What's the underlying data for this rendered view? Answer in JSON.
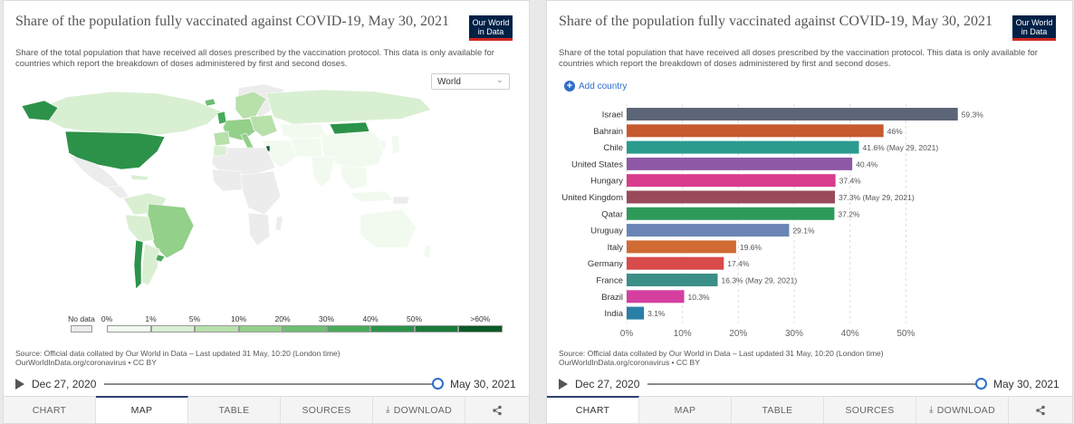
{
  "common": {
    "title": "Share of the population fully vaccinated against COVID-19, May 30, 2021",
    "subtitle": "Share of the total population that have received all doses prescribed by the vaccination protocol. This data is only available for countries which report the breakdown of doses administered by first and second doses.",
    "logo_line1": "Our World",
    "logo_line2": "in Data",
    "source_line1": "Source: Official data collated by Our World in Data – Last updated 31 May, 10:20 (London time)",
    "source_line2": "OurWorldInData.org/coronavirus • CC BY",
    "timeline_start": "Dec 27, 2020",
    "timeline_end": "May 30, 2021",
    "timeline_position": 1.0
  },
  "left": {
    "region_select": "World",
    "tabs": [
      {
        "label": "CHART",
        "active": false
      },
      {
        "label": "MAP",
        "active": true
      },
      {
        "label": "TABLE",
        "active": false
      },
      {
        "label": "SOURCES",
        "active": false
      },
      {
        "label": "DOWNLOAD",
        "active": false
      }
    ],
    "legend": {
      "no_data": "No data",
      "labels": [
        "0%",
        "1%",
        "5%",
        "10%",
        "20%",
        "30%",
        "40%",
        "50%",
        ">60%"
      ],
      "colors": [
        "#f2faef",
        "#d9efd2",
        "#b8e0ab",
        "#93d08a",
        "#6ebe73",
        "#4aaa5c",
        "#2c9249",
        "#1a7a38",
        "#0a5a26"
      ]
    },
    "colors": {
      "no_data": "#ececec",
      "land_border": "#ffffff"
    }
  },
  "right": {
    "add_country": "Add country",
    "tabs": [
      {
        "label": "CHART",
        "active": true
      },
      {
        "label": "MAP",
        "active": false
      },
      {
        "label": "TABLE",
        "active": false
      },
      {
        "label": "SOURCES",
        "active": false
      },
      {
        "label": "DOWNLOAD",
        "active": false
      }
    ]
  },
  "chart_data": {
    "type": "bar",
    "orientation": "horizontal",
    "title": "Share of the population fully vaccinated against COVID-19, May 30, 2021",
    "xlim": [
      0,
      60
    ],
    "x_ticks": [
      "0%",
      "10%",
      "20%",
      "30%",
      "40%",
      "50%"
    ],
    "x_tick_values": [
      0,
      10,
      20,
      30,
      40,
      50
    ],
    "grid": true,
    "categories": [
      "Israel",
      "Bahrain",
      "Chile",
      "United States",
      "Hungary",
      "United Kingdom",
      "Qatar",
      "Uruguay",
      "Italy",
      "Germany",
      "France",
      "Brazil",
      "India"
    ],
    "values": [
      59.3,
      46,
      41.6,
      40.4,
      37.4,
      37.3,
      37.2,
      29.1,
      19.6,
      17.4,
      16.3,
      10.3,
      3.1
    ],
    "value_labels": [
      "59.3%",
      "46%",
      "41.6% (May 29, 2021)",
      "40.4%",
      "37.4%",
      "37.3% (May 29, 2021)",
      "37.2%",
      "29.1%",
      "19.6%",
      "17.4%",
      "16.3% (May 29, 2021)",
      "10.3%",
      "3.1%"
    ],
    "colors": [
      "#5b6577",
      "#c55a2f",
      "#2b9b8f",
      "#8f58a6",
      "#d93b8c",
      "#9a4a5a",
      "#2d9a5a",
      "#6a85b5",
      "#cf6b33",
      "#d94a4a",
      "#3b8f87",
      "#d43fa0",
      "#2a7fa6"
    ]
  }
}
